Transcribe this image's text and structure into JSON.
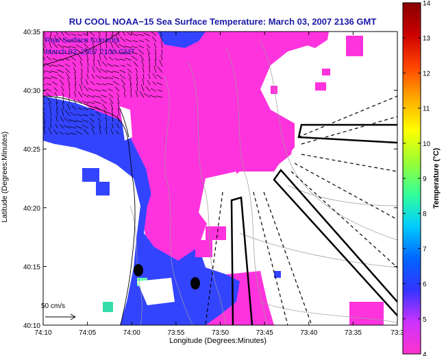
{
  "chart_data": {
    "type": "heatmap",
    "title": "RU COOL  NOAA−15  Sea Surface Temperature:  March 03, 2007 2136 GMT",
    "xlabel": "Longitude (Degrees:Minutes)",
    "ylabel": "Latitude (Degrees:Minutes)",
    "x_ticks": [
      "74:10",
      "74:05",
      "74:00",
      "73:55",
      "73:50",
      "73:45",
      "73:40",
      "73:35",
      "73:3"
    ],
    "y_ticks": [
      "40:35",
      "40:30",
      "40:25",
      "40:20",
      "40:15",
      "40:10"
    ],
    "xlim": [
      -74.1667,
      -73.5
    ],
    "ylim": [
      40.1667,
      40.5833
    ],
    "colorbar": {
      "label": "Temperature (°C)",
      "ticks": [
        4,
        5,
        6,
        7,
        8,
        9,
        10,
        11,
        12,
        13,
        14
      ],
      "tick_labels": [
        "4",
        "5",
        "6",
        "7",
        "8",
        "9",
        "10",
        "11",
        "12",
        "13",
        "14"
      ],
      "range": [
        4,
        14
      ],
      "colors": [
        "#ff33cc",
        "#cc33ff",
        "#3333ff",
        "#0066ff",
        "#00ccff",
        "#33ff99",
        "#99ff33",
        "#ffff00",
        "#ffaa00",
        "#ff4400",
        "#cc0000",
        "#880000"
      ]
    },
    "legend": {
      "line1": "Raw Surface Currents",
      "line2": "March 03, 2007 2100 GMT"
    },
    "scale_arrow": {
      "label": "50 cm/s",
      "value_cm_s": 50
    },
    "colors": {
      "title": "#1a1aa8",
      "land": "#ffffff",
      "warm_water": "#ff33dd",
      "cool_water": "#3344ff"
    }
  }
}
